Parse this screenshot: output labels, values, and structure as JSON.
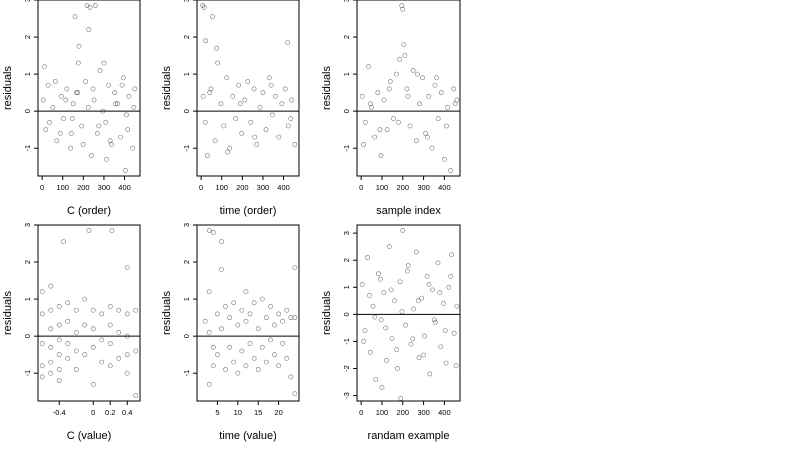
{
  "chart_data": [
    {
      "type": "scatter",
      "xlabel": "C (order)",
      "ylabel": "residuals",
      "xlim": [
        -20,
        475
      ],
      "ylim": [
        -1.75,
        3.0
      ],
      "xticks": [
        0,
        100,
        200,
        300,
        400
      ],
      "yticks": [
        -1,
        0,
        1,
        2,
        3
      ],
      "hline": 0,
      "series": [
        {
          "x": [
            5,
            18,
            29,
            52,
            71,
            93,
            104,
            120,
            138,
            151,
            166,
            179,
            192,
            211,
            226,
            240,
            252,
            268,
            281,
            295,
            309,
            323,
            336,
            352,
            366,
            381,
            394,
            409,
            421,
            438,
            450,
            12,
            36,
            64,
            88,
            115,
            146,
            173,
            199,
            224,
            247,
            275,
            300,
            330,
            357,
            388,
            415,
            445,
            160,
            218,
            232,
            258,
            176,
            142,
            312,
            404
          ],
          "y": [
            0.3,
            -0.5,
            0.7,
            0.1,
            -0.8,
            0.4,
            -0.2,
            0.6,
            -1.0,
            0.2,
            0.5,
            1.75,
            -0.4,
            0.8,
            2.2,
            -1.2,
            0.3,
            -0.6,
            1.1,
            0.0,
            -0.3,
            0.7,
            -0.9,
            0.5,
            0.2,
            -0.7,
            0.9,
            -0.1,
            0.4,
            -1.0,
            0.6,
            1.2,
            -0.3,
            0.8,
            -0.6,
            0.3,
            -0.2,
            0.5,
            -0.9,
            0.1,
            0.6,
            -0.4,
            1.3,
            -0.8,
            0.2,
            0.7,
            -0.5,
            0.1,
            2.55,
            2.85,
            2.8,
            2.85,
            1.3,
            -0.6,
            -1.3,
            -1.6
          ]
        }
      ]
    },
    {
      "type": "scatter",
      "xlabel": "time (order)",
      "ylabel": "residuals",
      "xlim": [
        -20,
        475
      ],
      "ylim": [
        -1.75,
        3.0
      ],
      "xticks": [
        0,
        100,
        200,
        300,
        400
      ],
      "yticks": [
        -1,
        0,
        1,
        2,
        3
      ],
      "hline": 0,
      "series": [
        {
          "x": [
            8,
            15,
            22,
            30,
            42,
            55,
            68,
            80,
            96,
            110,
            124,
            139,
            153,
            168,
            182,
            197,
            212,
            226,
            241,
            257,
            270,
            286,
            300,
            315,
            331,
            346,
            360,
            377,
            392,
            408,
            423,
            440,
            455,
            10,
            20,
            48,
            75,
            128,
            190,
            260,
            340,
            420,
            435
          ],
          "y": [
            2.85,
            2.8,
            1.9,
            -1.2,
            0.5,
            2.55,
            -0.8,
            1.3,
            0.2,
            -0.4,
            0.9,
            -1.0,
            0.4,
            -0.2,
            0.7,
            -0.6,
            0.3,
            0.8,
            -0.3,
            0.6,
            -0.9,
            0.1,
            0.5,
            -0.5,
            0.9,
            -0.1,
            0.4,
            -0.7,
            0.2,
            0.6,
            -0.4,
            0.3,
            -0.9,
            0.4,
            -0.3,
            0.6,
            1.7,
            -1.1,
            0.2,
            -0.7,
            0.7,
            1.85,
            -0.2
          ]
        }
      ]
    },
    {
      "type": "scatter",
      "xlabel": "sample index",
      "ylabel": "residuals",
      "xlim": [
        -20,
        475
      ],
      "ylim": [
        -1.75,
        3.0
      ],
      "xticks": [
        0,
        100,
        200,
        300,
        400
      ],
      "yticks": [
        -1,
        0,
        1,
        2,
        3
      ],
      "hline": 0,
      "series": [
        {
          "x": [
            5,
            20,
            35,
            50,
            65,
            80,
            95,
            110,
            125,
            140,
            155,
            170,
            185,
            195,
            200,
            205,
            210,
            220,
            235,
            250,
            265,
            280,
            295,
            310,
            325,
            340,
            355,
            370,
            385,
            400,
            415,
            430,
            445,
            460,
            12,
            45,
            90,
            135,
            180,
            225,
            270,
            318,
            362,
            410,
            452
          ],
          "y": [
            0.4,
            -0.3,
            1.2,
            0.1,
            -0.7,
            0.5,
            -1.2,
            0.3,
            -0.5,
            0.8,
            -0.2,
            1.0,
            1.4,
            2.85,
            2.75,
            1.8,
            1.5,
            0.6,
            -0.4,
            1.1,
            -0.8,
            0.2,
            0.9,
            -0.6,
            0.4,
            -1.0,
            0.7,
            -0.2,
            0.5,
            -1.3,
            0.1,
            -1.6,
            0.6,
            0.3,
            -0.9,
            0.2,
            -0.5,
            0.6,
            -0.3,
            0.4,
            1.0,
            -0.7,
            0.9,
            -0.4,
            0.2
          ]
        }
      ]
    },
    {
      "type": "scatter",
      "xlabel": "C (value)",
      "ylabel": "residuals",
      "xlim": [
        -0.65,
        0.55
      ],
      "ylim": [
        -1.75,
        3.0
      ],
      "xticks": [
        -0.4,
        0.0,
        0.2,
        0.4
      ],
      "yticks": [
        -1,
        0,
        1,
        2,
        3
      ],
      "hline": 0,
      "series": [
        {
          "x": [
            -0.6,
            -0.6,
            -0.6,
            -0.6,
            -0.6,
            -0.5,
            -0.5,
            -0.5,
            -0.5,
            -0.5,
            -0.5,
            -0.4,
            -0.4,
            -0.4,
            -0.4,
            -0.4,
            -0.4,
            -0.3,
            -0.3,
            -0.3,
            -0.3,
            -0.2,
            -0.2,
            -0.2,
            -0.2,
            -0.1,
            -0.1,
            -0.1,
            0.0,
            0.0,
            0.0,
            0.0,
            0.1,
            0.1,
            0.1,
            0.2,
            0.2,
            0.2,
            0.2,
            0.3,
            0.3,
            0.3,
            0.4,
            0.4,
            0.4,
            0.4,
            0.4,
            0.5,
            0.5,
            0.5,
            -0.35,
            -0.05,
            0.22
          ],
          "y": [
            1.2,
            0.6,
            -0.2,
            -0.8,
            -1.1,
            1.35,
            0.7,
            0.2,
            -0.3,
            -0.7,
            -1.0,
            0.8,
            0.3,
            -0.1,
            -0.5,
            -0.9,
            -1.2,
            0.9,
            0.4,
            -0.2,
            -0.6,
            0.7,
            0.1,
            -0.4,
            -0.9,
            1.0,
            0.3,
            -0.5,
            0.7,
            0.2,
            -0.3,
            -1.3,
            0.6,
            -0.1,
            -0.7,
            0.8,
            0.3,
            -0.2,
            -0.8,
            0.7,
            0.1,
            -0.6,
            1.85,
            0.6,
            0.0,
            -0.5,
            -1.0,
            0.7,
            -0.4,
            -1.6,
            2.55,
            2.85,
            2.85
          ]
        }
      ]
    },
    {
      "type": "scatter",
      "xlabel": "time (value)",
      "ylabel": "residuals",
      "xlim": [
        0,
        25
      ],
      "ylim": [
        -1.75,
        3.0
      ],
      "xticks": [
        5,
        10,
        15,
        20
      ],
      "yticks": [
        -1,
        0,
        1,
        2,
        3
      ],
      "hline": 0,
      "series": [
        {
          "x": [
            2,
            3,
            3,
            3,
            4,
            4,
            5,
            5,
            6,
            6,
            7,
            7,
            8,
            8,
            9,
            9,
            10,
            10,
            11,
            11,
            12,
            12,
            12,
            13,
            13,
            14,
            14,
            15,
            15,
            16,
            16,
            17,
            17,
            18,
            18,
            19,
            19,
            20,
            20,
            21,
            21,
            22,
            22,
            23,
            23,
            24,
            24,
            3,
            4,
            6,
            24
          ],
          "y": [
            0.4,
            2.85,
            1.2,
            -1.3,
            2.8,
            -0.8,
            0.6,
            -0.5,
            2.55,
            0.2,
            0.8,
            -0.9,
            0.5,
            -0.3,
            0.9,
            -0.7,
            0.3,
            -1.0,
            0.7,
            -0.4,
            1.2,
            0.4,
            -0.8,
            0.6,
            -0.2,
            0.9,
            -0.6,
            0.2,
            -0.9,
            1.0,
            -0.3,
            0.5,
            -0.7,
            0.8,
            -0.1,
            0.3,
            -0.5,
            0.6,
            -0.8,
            0.4,
            -0.2,
            0.7,
            -0.6,
            0.5,
            -1.1,
            1.85,
            -1.55,
            0.1,
            -0.3,
            1.8,
            0.5
          ]
        }
      ]
    },
    {
      "type": "scatter",
      "xlabel": "randam example",
      "ylabel": "residuals",
      "xlim": [
        -20,
        475
      ],
      "ylim": [
        -3.2,
        3.3
      ],
      "xticks": [
        0,
        100,
        200,
        300,
        400
      ],
      "yticks": [
        -3,
        -2,
        -1,
        0,
        1,
        2,
        3
      ],
      "hline": 0,
      "series": [
        {
          "x": [
            5,
            18,
            31,
            44,
            57,
            70,
            83,
            96,
            109,
            122,
            135,
            148,
            161,
            174,
            187,
            200,
            213,
            226,
            239,
            252,
            265,
            278,
            291,
            304,
            317,
            330,
            343,
            356,
            369,
            382,
            395,
            408,
            421,
            434,
            447,
            460,
            12,
            40,
            66,
            92,
            118,
            144,
            170,
            196,
            222,
            248,
            274,
            300,
            326,
            352,
            378,
            404,
            430,
            456,
            100,
            190
          ],
          "y": [
            1.1,
            -0.6,
            2.1,
            -1.4,
            0.3,
            -2.4,
            1.5,
            -0.2,
            0.8,
            -1.7,
            2.5,
            -0.9,
            0.5,
            -2.0,
            1.2,
            3.1,
            -0.4,
            1.8,
            -1.1,
            0.2,
            2.3,
            -1.6,
            0.6,
            -0.8,
            1.4,
            -2.2,
            0.9,
            -0.3,
            1.9,
            -1.2,
            0.4,
            -1.8,
            1.0,
            2.2,
            -0.7,
            0.3,
            -1.0,
            0.7,
            -0.1,
            1.3,
            -0.5,
            0.9,
            -1.3,
            0.1,
            1.6,
            -0.9,
            0.5,
            -1.5,
            1.1,
            -0.2,
            0.8,
            -0.6,
            1.4,
            -1.9,
            -2.7,
            -3.1
          ]
        }
      ]
    }
  ]
}
